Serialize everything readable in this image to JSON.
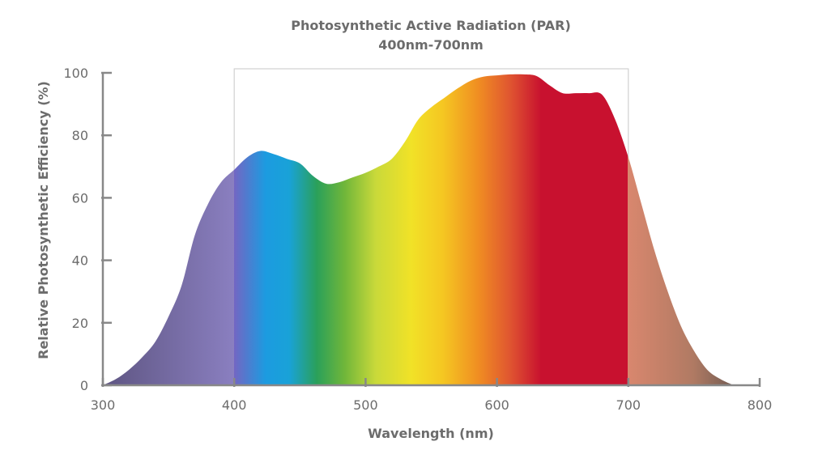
{
  "chart_data": {
    "type": "area",
    "title": "Photosynthetic Active Radiation (PAR)",
    "subtitle": "400nm-700nm",
    "xlabel": "Wavelength (nm)",
    "ylabel": "Relative Photosynthetic Efficiency (%)",
    "xlim": [
      300,
      800
    ],
    "ylim": [
      0,
      100
    ],
    "xticks": [
      300,
      400,
      500,
      600,
      700,
      800
    ],
    "yticks": [
      0,
      20,
      40,
      60,
      80,
      100
    ],
    "par_range": [
      400,
      700
    ],
    "grid": false,
    "series": [
      {
        "x": [
          300,
          310,
          320,
          330,
          340,
          350,
          360,
          370,
          380,
          390,
          400,
          410,
          420,
          430,
          440,
          450,
          460,
          470,
          480,
          490,
          500,
          510,
          520,
          530,
          540,
          550,
          560,
          570,
          580,
          590,
          600,
          610,
          620,
          630,
          640,
          650,
          660,
          670,
          680,
          690,
          700,
          710,
          720,
          730,
          740,
          750,
          760,
          770,
          780
        ],
        "y": [
          0,
          2,
          5,
          9,
          14,
          22,
          32,
          48,
          58,
          65,
          69,
          73,
          75,
          74,
          72.5,
          71,
          67,
          64.5,
          65,
          66.5,
          68,
          70,
          72.5,
          78,
          85,
          89,
          92,
          95,
          97.5,
          98.8,
          99.2,
          99.5,
          99.5,
          99,
          96,
          93.5,
          93.5,
          93.5,
          93,
          85,
          73,
          58,
          43,
          30,
          19,
          11,
          5,
          2,
          0
        ]
      }
    ],
    "colors": {
      "uv_fill": "#7d72b0",
      "ir_fill": "#c98a71",
      "violet": "#7b6cc4",
      "blue": "#1ba1dd",
      "green": "#2ea045",
      "yellow": "#f1e227",
      "orange": "#f08e22",
      "red": "#c8112f",
      "axis": "#888888",
      "text": "#6c6c6c",
      "par_frame": "#d0d0d0"
    }
  }
}
